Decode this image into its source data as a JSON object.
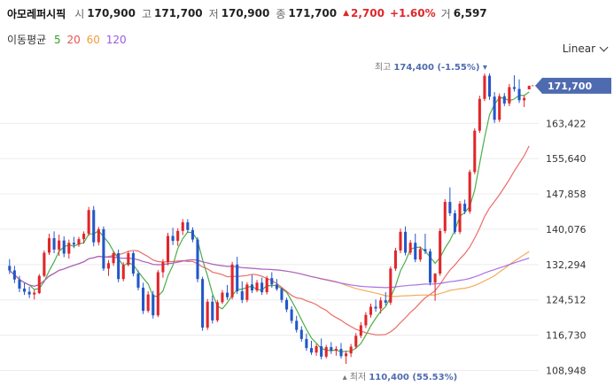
{
  "header": {
    "name": "아모레퍼시픽",
    "open_label": "시",
    "open": "170,900",
    "high_label": "고",
    "high": "171,700",
    "low_label": "저",
    "low": "170,900",
    "close_label": "종",
    "close": "171,700",
    "change": "2,700",
    "change_pct": "+1.60%",
    "volume_label": "거",
    "volume": "6,597"
  },
  "ma_legend": {
    "label": "이동평균",
    "items": [
      {
        "period": "5",
        "color": "#2ca02c"
      },
      {
        "period": "20",
        "color": "#e8544e"
      },
      {
        "period": "60",
        "color": "#f39c3c"
      },
      {
        "period": "120",
        "color": "#9b59e0"
      }
    ]
  },
  "scale_toggle": "Linear",
  "colors": {
    "up": "#e0262b",
    "down": "#2357c8",
    "badge": "#4f6bb0",
    "grid": "#ececec"
  },
  "chart_data": {
    "type": "candlestick",
    "y_ticks": [
      171700,
      163422,
      155640,
      147858,
      140076,
      132294,
      124512,
      116730,
      108948
    ],
    "y_tick_labels": [
      "171,700",
      "163,422",
      "155,640",
      "147,858",
      "140,076",
      "132,294",
      "124,512",
      "116,730",
      "108,948"
    ],
    "ylim": [
      106700,
      178500
    ],
    "grid": true,
    "current_price": 171700,
    "current_price_label": "171,700",
    "max_annotation": {
      "prefix": "최고",
      "value": 174400,
      "text": "174,400 (-1.55%)"
    },
    "min_annotation": {
      "prefix": "최저",
      "value": 110400,
      "text": "110,400 (55.53%)"
    },
    "candles": [
      [
        132000,
        133500,
        130200,
        131000
      ],
      [
        131000,
        132000,
        128200,
        129000
      ],
      [
        129000,
        129800,
        126200,
        127000
      ],
      [
        127000,
        128200,
        125600,
        126300
      ],
      [
        126300,
        127400,
        124900,
        125700
      ],
      [
        125700,
        126800,
        124600,
        126100
      ],
      [
        126000,
        130200,
        125800,
        129800
      ],
      [
        129800,
        135400,
        129500,
        134900
      ],
      [
        134900,
        139100,
        134400,
        138100
      ],
      [
        138100,
        139600,
        134800,
        135600
      ],
      [
        135600,
        138900,
        134200,
        137600
      ],
      [
        137600,
        138500,
        133900,
        134700
      ],
      [
        134700,
        137800,
        133600,
        137100
      ],
      [
        137100,
        138400,
        135900,
        136700
      ],
      [
        136700,
        138400,
        136200,
        137900
      ],
      [
        137900,
        139600,
        136900,
        139100
      ],
      [
        139100,
        145000,
        138600,
        144300
      ],
      [
        144300,
        145200,
        136300,
        137200
      ],
      [
        137200,
        140600,
        136500,
        140100
      ],
      [
        140100,
        140700,
        130900,
        131400
      ],
      [
        131400,
        133300,
        129800,
        132600
      ],
      [
        132600,
        135200,
        132000,
        134800
      ],
      [
        134800,
        135600,
        128400,
        129100
      ],
      [
        129100,
        132800,
        128600,
        132200
      ],
      [
        132200,
        135300,
        131900,
        134800
      ],
      [
        134800,
        135200,
        129700,
        130300
      ],
      [
        130300,
        131000,
        126600,
        127200
      ],
      [
        127200,
        128300,
        121400,
        122100
      ],
      [
        122100,
        126400,
        121700,
        125700
      ],
      [
        125700,
        126500,
        120400,
        121100
      ],
      [
        121100,
        131100,
        120700,
        130600
      ],
      [
        130600,
        133500,
        129400,
        132800
      ],
      [
        132800,
        139300,
        132100,
        138600
      ],
      [
        138600,
        140400,
        136600,
        137500
      ],
      [
        137500,
        140300,
        136400,
        139700
      ],
      [
        139700,
        142300,
        138800,
        141600
      ],
      [
        141600,
        142300,
        139300,
        139900
      ],
      [
        139900,
        140500,
        137200,
        137800
      ],
      [
        137800,
        138300,
        128400,
        129100
      ],
      [
        129100,
        129600,
        117700,
        118400
      ],
      [
        118400,
        124700,
        117900,
        124100
      ],
      [
        124100,
        125500,
        119300,
        120000
      ],
      [
        120000,
        124500,
        119600,
        124000
      ],
      [
        124000,
        126700,
        123600,
        126100
      ],
      [
        126100,
        127800,
        124500,
        125100
      ],
      [
        125100,
        132900,
        124600,
        132300
      ],
      [
        132300,
        134000,
        125800,
        126400
      ],
      [
        126400,
        128600,
        123800,
        124500
      ],
      [
        124500,
        128400,
        124000,
        127900
      ],
      [
        127900,
        130000,
        126000,
        126600
      ],
      [
        126600,
        128900,
        126200,
        128300
      ],
      [
        128300,
        129400,
        125600,
        126200
      ],
      [
        126200,
        129800,
        125700,
        129300
      ],
      [
        129300,
        130600,
        127200,
        127900
      ],
      [
        127900,
        129100,
        126500,
        126900
      ],
      [
        126900,
        127200,
        123900,
        124500
      ],
      [
        124500,
        125000,
        121800,
        122400
      ],
      [
        122400,
        123100,
        119300,
        119900
      ],
      [
        119900,
        121000,
        117300,
        117900
      ],
      [
        117900,
        118700,
        115300,
        115900
      ],
      [
        115900,
        117100,
        113300,
        113900
      ],
      [
        113900,
        115500,
        112400,
        112900
      ],
      [
        112900,
        114800,
        112200,
        114300
      ],
      [
        114300,
        116000,
        111400,
        112000
      ],
      [
        112000,
        114600,
        111600,
        114100
      ],
      [
        114100,
        115200,
        112600,
        113300
      ],
      [
        113300,
        114300,
        112200,
        113700
      ],
      [
        113700,
        115000,
        111600,
        112100
      ],
      [
        112100,
        113300,
        110400,
        112700
      ],
      [
        112700,
        114800,
        111900,
        114200
      ],
      [
        114200,
        117200,
        113700,
        116600
      ],
      [
        116600,
        119600,
        116100,
        118900
      ],
      [
        118900,
        121800,
        118300,
        121200
      ],
      [
        121200,
        123700,
        120600,
        123000
      ],
      [
        123000,
        124600,
        121900,
        122600
      ],
      [
        122600,
        125100,
        121500,
        124400
      ],
      [
        124400,
        126200,
        123300,
        123900
      ],
      [
        123900,
        131900,
        123400,
        131400
      ],
      [
        131400,
        136000,
        130900,
        135400
      ],
      [
        135400,
        140200,
        134800,
        139500
      ],
      [
        139500,
        140700,
        134300,
        134900
      ],
      [
        134900,
        137700,
        134400,
        137100
      ],
      [
        137100,
        139100,
        132800,
        133400
      ],
      [
        133400,
        136300,
        132900,
        135700
      ],
      [
        135700,
        139100,
        134600,
        135200
      ],
      [
        135200,
        135800,
        127700,
        128300
      ],
      [
        128300,
        130400,
        124300,
        130300
      ],
      [
        130300,
        140300,
        129800,
        139700
      ],
      [
        139700,
        146700,
        139200,
        146100
      ],
      [
        146100,
        149300,
        143000,
        143600
      ],
      [
        143600,
        144300,
        139000,
        139500
      ],
      [
        139500,
        146300,
        139000,
        145700
      ],
      [
        145700,
        146600,
        143400,
        144000
      ],
      [
        144000,
        153200,
        143500,
        152700
      ],
      [
        152700,
        162300,
        152200,
        161800
      ],
      [
        161800,
        169500,
        161300,
        168800
      ],
      [
        168800,
        174400,
        168300,
        173900
      ],
      [
        173900,
        174400,
        168600,
        169300
      ],
      [
        169300,
        170300,
        163500,
        164200
      ],
      [
        164200,
        170000,
        163700,
        169400
      ],
      [
        169400,
        170100,
        167200,
        167800
      ],
      [
        167800,
        172100,
        167200,
        171400
      ],
      [
        171400,
        174000,
        170400,
        171000
      ],
      [
        171000,
        173100,
        167900,
        168500
      ],
      [
        168500,
        169600,
        167000,
        169000
      ],
      [
        170900,
        171700,
        170900,
        171700
      ]
    ]
  }
}
